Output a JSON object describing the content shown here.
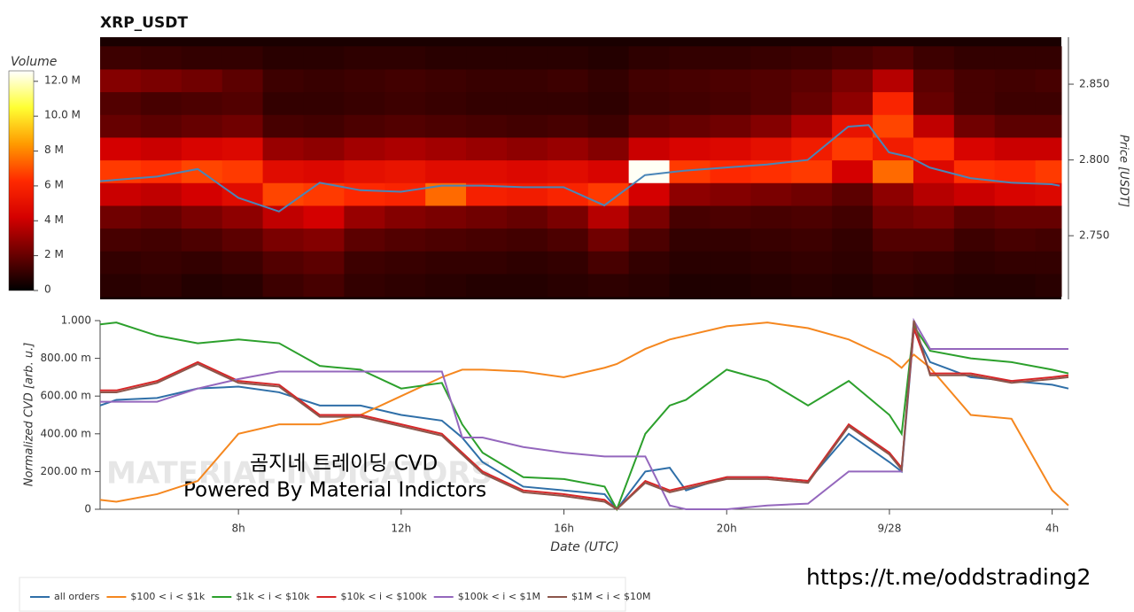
{
  "chart_data": [
    {
      "type": "heatmap",
      "title": "XRP_USDT",
      "ylabel": "Price [USDT]",
      "xlim": [
        4.6,
        28.24
      ],
      "ylim": [
        2.708,
        2.881
      ],
      "yticks": [
        {
          "value": 2.75,
          "label": "2.750"
        },
        {
          "value": 2.8,
          "label": "2.800"
        },
        {
          "value": 2.85,
          "label": "2.850"
        }
      ],
      "x_edges": [
        4.6,
        5.6,
        6.6,
        7.6,
        8.6,
        9.6,
        10.6,
        11.6,
        12.6,
        13.6,
        14.6,
        15.6,
        16.6,
        17.6,
        18.6,
        19.6,
        20.6,
        21.6,
        22.6,
        23.6,
        24.6,
        25.6,
        26.6,
        27.6,
        28.24
      ],
      "y_edges": [
        2.71,
        2.725,
        2.74,
        2.755,
        2.77,
        2.785,
        2.8,
        2.815,
        2.83,
        2.845,
        2.86,
        2.875
      ],
      "values": [
        [
          800000.0,
          900000.0,
          700000.0,
          800000.0,
          1200000.0,
          1400000.0,
          1000000.0,
          900000.0,
          800000.0,
          700000.0,
          700000.0,
          800000.0,
          900000.0,
          800000.0,
          600000.0,
          600000.0,
          700000.0,
          800000.0,
          700000.0,
          900000.0,
          800000.0,
          700000.0,
          700000.0,
          800000.0
        ],
        [
          1000000.0,
          1100000.0,
          1000000.0,
          1200000.0,
          1600000.0,
          1800000.0,
          1200000.0,
          1100000.0,
          1000000.0,
          1000000.0,
          900000.0,
          1000000.0,
          1400000.0,
          1000000.0,
          800000.0,
          800000.0,
          900000.0,
          1000000.0,
          900000.0,
          1200000.0,
          1100000.0,
          900000.0,
          1000000.0,
          1000000.0
        ],
        [
          1400000.0,
          1300000.0,
          1500000.0,
          1800000.0,
          2400000.0,
          2600000.0,
          1800000.0,
          1600000.0,
          1500000.0,
          1400000.0,
          1300000.0,
          1500000.0,
          2200000.0,
          1500000.0,
          1000000.0,
          1000000.0,
          1100000.0,
          1200000.0,
          1000000.0,
          1600000.0,
          1600000.0,
          1200000.0,
          1400000.0,
          1300000.0
        ],
        [
          2200000.0,
          2000000.0,
          2400000.0,
          2800000.0,
          3800000.0,
          4200000.0,
          3000000.0,
          2600000.0,
          2400000.0,
          2200000.0,
          2000000.0,
          2400000.0,
          3600000.0,
          2400000.0,
          1400000.0,
          1500000.0,
          1400000.0,
          1500000.0,
          1300000.0,
          2200000.0,
          2400000.0,
          1800000.0,
          2000000.0,
          2000000.0
        ],
        [
          4000000.0,
          3800000.0,
          4200000.0,
          4800000.0,
          6800000.0,
          6600000.0,
          6200000.0,
          6000000.0,
          7500000.0,
          5800000.0,
          5600000.0,
          6000000.0,
          6600000.0,
          4200000.0,
          2800000.0,
          2600000.0,
          2400000.0,
          2200000.0,
          1800000.0,
          2800000.0,
          3600000.0,
          4000000.0,
          4400000.0,
          4600000.0
        ],
        [
          6600000.0,
          6400000.0,
          6800000.0,
          6600000.0,
          4800000.0,
          4600000.0,
          5000000.0,
          5200000.0,
          4800000.0,
          4800000.0,
          4600000.0,
          4800000.0,
          4400000.0,
          12500000.0,
          6600000.0,
          6200000.0,
          6400000.0,
          6600000.0,
          4200000.0,
          7500000.0,
          4600000.0,
          6400000.0,
          6200000.0,
          6600000.0
        ],
        [
          4200000.0,
          4000000.0,
          4400000.0,
          4600000.0,
          3000000.0,
          2800000.0,
          3200000.0,
          3400000.0,
          3200000.0,
          3000000.0,
          2800000.0,
          3000000.0,
          2600000.0,
          4000000.0,
          4400000.0,
          4600000.0,
          5000000.0,
          5600000.0,
          6600000.0,
          5600000.0,
          6400000.0,
          4400000.0,
          4000000.0,
          4000000.0
        ],
        [
          2000000.0,
          1800000.0,
          2000000.0,
          2200000.0,
          1400000.0,
          1300000.0,
          1500000.0,
          1600000.0,
          1500000.0,
          1400000.0,
          1300000.0,
          1400000.0,
          1200000.0,
          1800000.0,
          2000000.0,
          2200000.0,
          2600000.0,
          3400000.0,
          5200000.0,
          6800000.0,
          3800000.0,
          2200000.0,
          1800000.0,
          1800000.0
        ],
        [
          1600000.0,
          1400000.0,
          1500000.0,
          1600000.0,
          1000000.0,
          1000000.0,
          1100000.0,
          1200000.0,
          1100000.0,
          1000000.0,
          1000000.0,
          1000000.0,
          900000.0,
          1200000.0,
          1300000.0,
          1400000.0,
          1600000.0,
          2000000.0,
          2800000.0,
          6000000.0,
          2000000.0,
          1400000.0,
          1200000.0,
          1200000.0
        ],
        [
          2600000.0,
          2400000.0,
          2200000.0,
          1800000.0,
          1200000.0,
          1100000.0,
          1200000.0,
          1300000.0,
          1200000.0,
          1100000.0,
          1100000.0,
          1200000.0,
          1000000.0,
          1300000.0,
          1400000.0,
          1500000.0,
          1600000.0,
          1800000.0,
          2400000.0,
          3600000.0,
          1800000.0,
          1400000.0,
          1300000.0,
          1400000.0
        ],
        [
          1200000.0,
          1100000.0,
          1000000.0,
          1000000.0,
          800000.0,
          800000.0,
          900000.0,
          900000.0,
          800000.0,
          800000.0,
          800000.0,
          800000.0,
          700000.0,
          900000.0,
          1000000.0,
          1000000.0,
          1100000.0,
          1200000.0,
          1400000.0,
          1600000.0,
          1200000.0,
          1000000.0,
          1000000.0,
          1000000.0
        ]
      ],
      "colorbar": {
        "label": "Volume",
        "lim": [
          0,
          12600000.0
        ],
        "colors": [
          "#000000",
          "#6b0000",
          "#d40000",
          "#ff2a00",
          "#ff9a00",
          "#ffff33",
          "#ffffff"
        ],
        "ticks": [
          0,
          {
            "value": 2000000.0,
            "label": "2 M"
          },
          {
            "value": 4000000.0,
            "label": "4 M"
          },
          {
            "value": 6000000.0,
            "label": "6 M"
          },
          {
            "value": 8000000.0,
            "label": "8 M"
          },
          {
            "value": 10000000.0,
            "label": "10.0 M"
          },
          {
            "value": 12000000.0,
            "label": "12.0 M"
          }
        ]
      },
      "price_line": {
        "color": "#4a86b8",
        "x": [
          4.6,
          6,
          7,
          8,
          9,
          10,
          11,
          12,
          13,
          14,
          15,
          16,
          17,
          17.5,
          18,
          19,
          20,
          21,
          22,
          23,
          23.5,
          24,
          24.5,
          25,
          26,
          27,
          28,
          28.2
        ],
        "values": [
          2.786,
          2.789,
          2.794,
          2.775,
          2.766,
          2.785,
          2.78,
          2.779,
          2.783,
          2.783,
          2.782,
          2.782,
          2.77,
          2.78,
          2.79,
          2.793,
          2.795,
          2.797,
          2.8,
          2.822,
          2.823,
          2.805,
          2.802,
          2.795,
          2.788,
          2.785,
          2.784,
          2.783
        ]
      }
    },
    {
      "type": "line",
      "xlabel": "Date (UTC)",
      "ylabel": "Normalized CVD [arb. u.]",
      "legend": "bottom",
      "xlim": [
        4.6,
        28.4
      ],
      "ylim": [
        0,
        1
      ],
      "xticks": [
        {
          "value": 8,
          "label": "8h"
        },
        {
          "value": 12,
          "label": "12h"
        },
        {
          "value": 16,
          "label": "16h"
        },
        {
          "value": 20,
          "label": "20h"
        },
        {
          "value": 24,
          "label": "9/28"
        },
        {
          "value": 28,
          "label": "4h"
        }
      ],
      "yticks": [
        0,
        {
          "value": 0.2,
          "label": "200.00 m"
        },
        {
          "value": 0.4,
          "label": "400.00 m"
        },
        {
          "value": 0.6,
          "label": "600.00 m"
        },
        {
          "value": 0.8,
          "label": "800.00 m"
        },
        {
          "value": 1,
          "label": "1.000"
        }
      ],
      "x": [
        4.6,
        5,
        6,
        7,
        8,
        9,
        10,
        11,
        12,
        13,
        13.5,
        14,
        15,
        16,
        17,
        17.3,
        18,
        18.6,
        19,
        20,
        21,
        22,
        23,
        24,
        24.3,
        24.6,
        25,
        26,
        27,
        28,
        28.4
      ],
      "series": [
        {
          "name": "all orders",
          "color": "#2f6fa8",
          "values": [
            0.55,
            0.58,
            0.59,
            0.64,
            0.65,
            0.62,
            0.55,
            0.55,
            0.5,
            0.47,
            0.38,
            0.25,
            0.12,
            0.1,
            0.08,
            0,
            0.2,
            0.22,
            0.1,
            0.17,
            0.17,
            0.15,
            0.4,
            0.25,
            0.2,
            0.95,
            0.78,
            0.7,
            0.68,
            0.66,
            0.64
          ]
        },
        {
          "name": "$100 < i < $1k",
          "color": "#f5871f",
          "values": [
            0.05,
            0.04,
            0.08,
            0.15,
            0.4,
            0.45,
            0.45,
            0.5,
            0.6,
            0.7,
            0.74,
            0.74,
            0.73,
            0.7,
            0.75,
            0.77,
            0.85,
            0.9,
            0.92,
            0.97,
            0.99,
            0.96,
            0.9,
            0.8,
            0.75,
            0.82,
            0.75,
            0.5,
            0.48,
            0.1,
            0.02
          ]
        },
        {
          "name": "$1k < i < $10k",
          "color": "#2ca02c",
          "values": [
            0.98,
            0.99,
            0.92,
            0.88,
            0.9,
            0.88,
            0.76,
            0.74,
            0.64,
            0.67,
            0.45,
            0.3,
            0.17,
            0.16,
            0.12,
            0,
            0.4,
            0.55,
            0.58,
            0.74,
            0.68,
            0.55,
            0.68,
            0.5,
            0.4,
            0.97,
            0.84,
            0.8,
            0.78,
            0.74,
            0.72
          ]
        },
        {
          "name": "$10k < i < $100k",
          "color": "#d62728",
          "values": [
            0.63,
            0.63,
            0.68,
            0.78,
            0.68,
            0.66,
            0.5,
            0.5,
            0.45,
            0.4,
            0.3,
            0.2,
            0.1,
            0.08,
            0.05,
            0,
            0.15,
            0.1,
            0.12,
            0.17,
            0.17,
            0.15,
            0.45,
            0.3,
            0.22,
            0.96,
            0.72,
            0.72,
            0.68,
            0.7,
            0.71
          ]
        },
        {
          "name": "$100k < i < $1M",
          "color": "#9467bd",
          "values": [
            0.57,
            0.57,
            0.57,
            0.64,
            0.69,
            0.73,
            0.73,
            0.73,
            0.73,
            0.73,
            0.38,
            0.38,
            0.33,
            0.3,
            0.28,
            0.28,
            0.28,
            0.02,
            0,
            0,
            0.02,
            0.03,
            0.2,
            0.2,
            0.2,
            1.0,
            0.85,
            0.85,
            0.85,
            0.85,
            0.85
          ]
        },
        {
          "name": "$1M < i < $10M",
          "color": "#8c564b",
          "values": [
            0.62,
            0.62,
            0.67,
            0.77,
            0.67,
            0.65,
            0.49,
            0.49,
            0.44,
            0.39,
            0.29,
            0.19,
            0.09,
            0.07,
            0.04,
            0,
            0.14,
            0.09,
            0.11,
            0.16,
            0.16,
            0.14,
            0.44,
            0.29,
            0.21,
            1.0,
            0.71,
            0.71,
            0.67,
            0.69,
            0.7
          ]
        }
      ]
    }
  ],
  "watermark": {
    "logo": "MATERIAL INDICATORS",
    "lines": [
      "곰지네 트레이딩 CVD",
      "Powered By Material Indictors"
    ],
    "url": "https://t.me/oddstrading2"
  }
}
